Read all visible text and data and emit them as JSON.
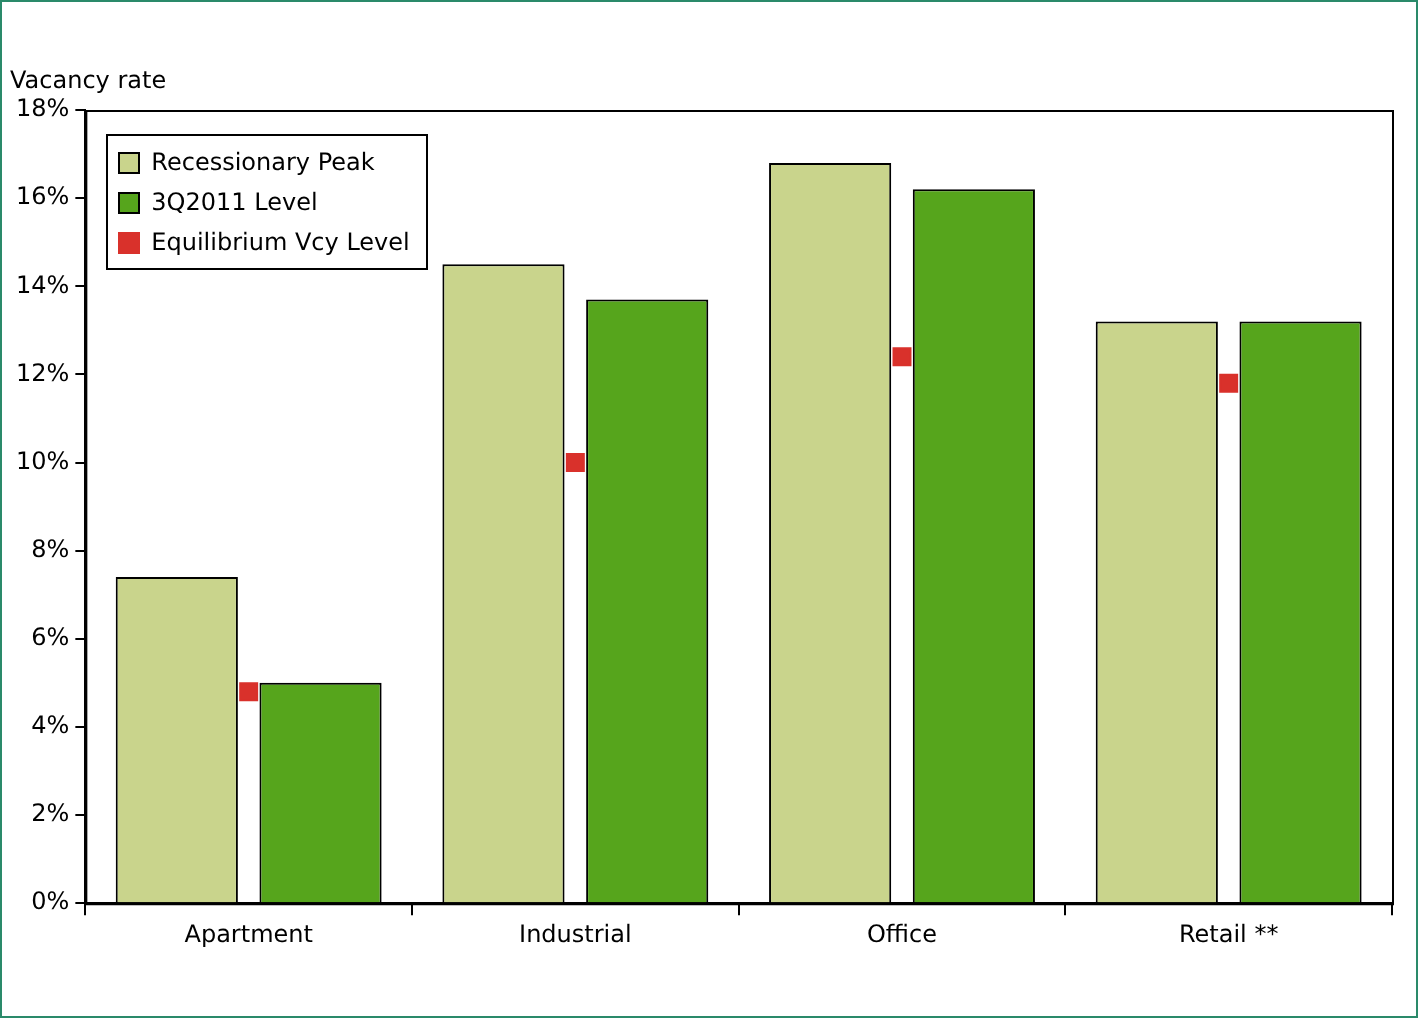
{
  "chart_data": {
    "type": "bar",
    "ylabel": "Vacancy rate",
    "categories": [
      "Apartment",
      "Industrial",
      "Office",
      "Retail **"
    ],
    "series": [
      {
        "name": "Recessionary Peak",
        "color": "#c9d48c",
        "values": [
          7.4,
          14.5,
          16.8,
          13.2
        ]
      },
      {
        "name": "3Q2011 Level",
        "color": "#56a51c",
        "values": [
          5.0,
          13.7,
          16.2,
          13.2
        ]
      },
      {
        "name": "Equilibrium Vcy Level",
        "type": "scatter",
        "marker": "square",
        "color": "#d9312b",
        "x": [
          "Apartment",
          "Industrial",
          "Office",
          "Retail **"
        ],
        "values": [
          4.8,
          10.0,
          12.4,
          11.8
        ]
      }
    ],
    "ylim": [
      0,
      18
    ],
    "yticks": [
      {
        "value": 0,
        "label": "0%"
      },
      {
        "value": 2,
        "label": "2%"
      },
      {
        "value": 4,
        "label": "4%"
      },
      {
        "value": 6,
        "label": "6%"
      },
      {
        "value": 8,
        "label": "8%"
      },
      {
        "value": 10,
        "label": "10%"
      },
      {
        "value": 12,
        "label": "12%"
      },
      {
        "value": 14,
        "label": "14%"
      },
      {
        "value": 16,
        "label": "16%"
      },
      {
        "value": 18,
        "label": "18%"
      }
    ],
    "grid": false,
    "legend": "top left"
  }
}
